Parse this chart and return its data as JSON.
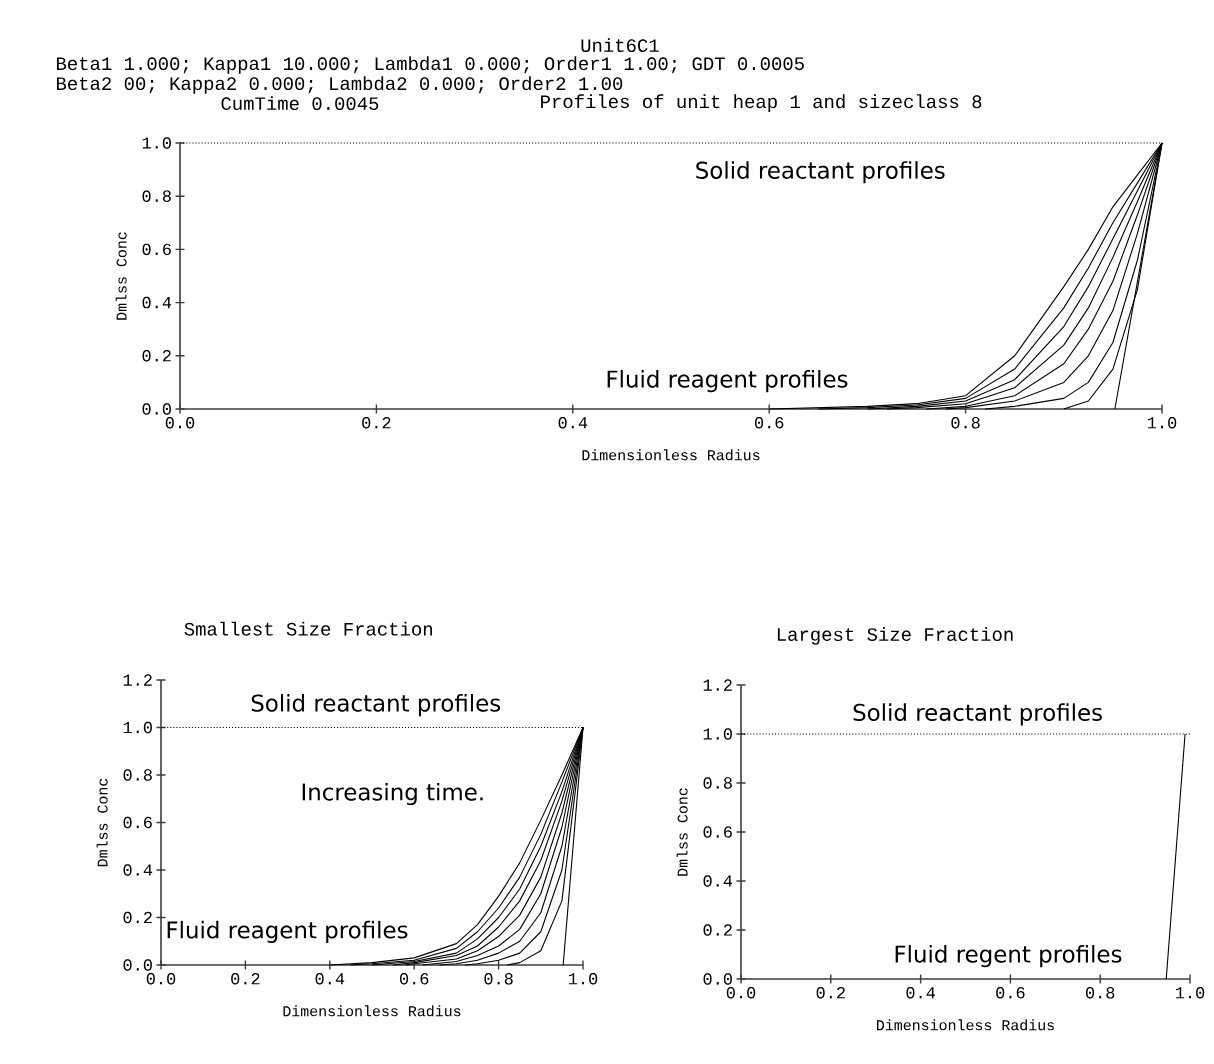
{
  "chart_data": [
    {
      "type": "line",
      "title": "Unit6C1",
      "xlabel": "Dimensionless Radius",
      "ylabel": "Dmlss Conc",
      "xlim": [
        0,
        1
      ],
      "ylim": [
        0,
        1
      ],
      "xticks": [
        {
          "value": 0,
          "label": "0.0"
        },
        {
          "value": 0.2,
          "label": "0.2"
        },
        {
          "value": 0.4,
          "label": "0.4"
        },
        {
          "value": 0.6,
          "label": "0.6"
        },
        {
          "value": 0.8,
          "label": "0.8"
        },
        {
          "value": 1,
          "label": "1.0"
        }
      ],
      "yticks": [
        {
          "value": 0,
          "label": "0.0"
        },
        {
          "value": 0.2,
          "label": "0.2"
        },
        {
          "value": 0.4,
          "label": "0.4"
        },
        {
          "value": 0.6,
          "label": "0.6"
        },
        {
          "value": 0.8,
          "label": "0.8"
        },
        {
          "value": 1,
          "label": "1.0"
        }
      ],
      "series": [
        {
          "color": "#000000",
          "line_style": "dotted",
          "x": [
            0,
            1
          ],
          "values": [
            1,
            1
          ]
        },
        {
          "color": "#000000",
          "x": [
            0.6,
            0.7,
            0.75,
            0.8,
            0.85,
            0.9,
            0.925,
            0.95,
            0.975,
            1.0
          ],
          "values": [
            0,
            0.01,
            0.02,
            0.05,
            0.2,
            0.46,
            0.6,
            0.76,
            0.88,
            1
          ]
        },
        {
          "color": "#000000",
          "x": [
            0.65,
            0.7,
            0.75,
            0.8,
            0.85,
            0.9,
            0.925,
            0.95,
            0.975,
            1.0
          ],
          "values": [
            0,
            0.005,
            0.015,
            0.04,
            0.15,
            0.38,
            0.53,
            0.7,
            0.85,
            1
          ]
        },
        {
          "color": "#000000",
          "x": [
            0.7,
            0.75,
            0.8,
            0.85,
            0.9,
            0.925,
            0.95,
            0.975,
            1.0
          ],
          "values": [
            0,
            0.01,
            0.03,
            0.11,
            0.31,
            0.46,
            0.64,
            0.82,
            1
          ]
        },
        {
          "color": "#000000",
          "x": [
            0.72,
            0.75,
            0.8,
            0.85,
            0.9,
            0.925,
            0.95,
            0.975,
            1.0
          ],
          "values": [
            0,
            0.005,
            0.02,
            0.08,
            0.24,
            0.38,
            0.57,
            0.78,
            1
          ]
        },
        {
          "color": "#000000",
          "x": [
            0.76,
            0.8,
            0.85,
            0.9,
            0.925,
            0.95,
            0.975,
            1.0
          ],
          "values": [
            0,
            0.01,
            0.05,
            0.17,
            0.3,
            0.48,
            0.73,
            1
          ]
        },
        {
          "color": "#000000",
          "x": [
            0.78,
            0.8,
            0.85,
            0.9,
            0.925,
            0.95,
            0.975,
            1.0
          ],
          "values": [
            0,
            0.005,
            0.03,
            0.1,
            0.2,
            0.37,
            0.66,
            1
          ]
        },
        {
          "color": "#000000",
          "x": [
            0.82,
            0.85,
            0.9,
            0.925,
            0.95,
            0.975,
            1.0
          ],
          "values": [
            0,
            0.01,
            0.04,
            0.1,
            0.25,
            0.56,
            1
          ]
        },
        {
          "color": "#000000",
          "x": [
            0.9,
            0.925,
            0.95,
            0.975,
            1.0
          ],
          "values": [
            0,
            0.03,
            0.15,
            0.45,
            1
          ]
        },
        {
          "color": "#000000",
          "x": [
            0.952,
            1.0
          ],
          "values": [
            0,
            1
          ]
        }
      ],
      "annotations": [
        "Beta1 1.000; Kappa1 10.000; Lambda1 0.000; Order1 1.00; GDT 0.0005",
        "Beta2 00; Kappa2 0.000; Lambda2 0.000; Order2 1.00",
        "CumTime 0.0045",
        "Profiles of unit heap 1 and sizeclass 8",
        "Solid reactant profiles",
        "Fluid reagent profiles"
      ]
    },
    {
      "type": "line",
      "title": "Smallest Size Fraction",
      "xlabel": "Dimensionless Radius",
      "ylabel": "Dmlss Conc",
      "xlim": [
        0,
        1
      ],
      "ylim": [
        0,
        1.2
      ],
      "xticks": [
        {
          "value": 0,
          "label": "0.0"
        },
        {
          "value": 0.2,
          "label": "0.2"
        },
        {
          "value": 0.4,
          "label": "0.4"
        },
        {
          "value": 0.6,
          "label": "0.6"
        },
        {
          "value": 0.8,
          "label": "0.8"
        },
        {
          "value": 1,
          "label": "1.0"
        }
      ],
      "yticks": [
        {
          "value": 0,
          "label": "0.0"
        },
        {
          "value": 0.2,
          "label": "0.2"
        },
        {
          "value": 0.4,
          "label": "0.4"
        },
        {
          "value": 0.6,
          "label": "0.6"
        },
        {
          "value": 0.8,
          "label": "0.8"
        },
        {
          "value": 1,
          "label": "1.0"
        },
        {
          "value": 1.2,
          "label": "1.2"
        }
      ],
      "series": [
        {
          "color": "#000000",
          "line_style": "dotted",
          "x": [
            0,
            1
          ],
          "values": [
            1,
            1
          ]
        },
        {
          "color": "#000000",
          "x": [
            0.4,
            0.5,
            0.6,
            0.7,
            0.75,
            0.8,
            0.85,
            0.9,
            0.95,
            1.0
          ],
          "values": [
            0,
            0.01,
            0.03,
            0.09,
            0.17,
            0.29,
            0.43,
            0.61,
            0.8,
            1
          ]
        },
        {
          "color": "#000000",
          "x": [
            0.45,
            0.5,
            0.6,
            0.7,
            0.75,
            0.8,
            0.85,
            0.9,
            0.95,
            1.0
          ],
          "values": [
            0,
            0.005,
            0.02,
            0.07,
            0.14,
            0.24,
            0.37,
            0.55,
            0.77,
            1
          ]
        },
        {
          "color": "#000000",
          "x": [
            0.5,
            0.6,
            0.7,
            0.75,
            0.8,
            0.85,
            0.9,
            0.95,
            1.0
          ],
          "values": [
            0,
            0.015,
            0.05,
            0.11,
            0.2,
            0.32,
            0.5,
            0.73,
            1
          ]
        },
        {
          "color": "#000000",
          "x": [
            0.55,
            0.6,
            0.7,
            0.75,
            0.8,
            0.85,
            0.9,
            0.95,
            1.0
          ],
          "values": [
            0,
            0.01,
            0.04,
            0.08,
            0.16,
            0.27,
            0.44,
            0.69,
            1
          ]
        },
        {
          "color": "#000000",
          "x": [
            0.58,
            0.6,
            0.7,
            0.75,
            0.8,
            0.85,
            0.9,
            0.95,
            1.0
          ],
          "values": [
            0,
            0.005,
            0.025,
            0.06,
            0.12,
            0.21,
            0.37,
            0.64,
            1
          ]
        },
        {
          "color": "#000000",
          "x": [
            0.62,
            0.7,
            0.75,
            0.8,
            0.85,
            0.9,
            0.95,
            1.0
          ],
          "values": [
            0,
            0.015,
            0.04,
            0.08,
            0.15,
            0.3,
            0.58,
            1
          ]
        },
        {
          "color": "#000000",
          "x": [
            0.66,
            0.7,
            0.75,
            0.8,
            0.85,
            0.9,
            0.95,
            1.0
          ],
          "values": [
            0,
            0.005,
            0.02,
            0.05,
            0.1,
            0.22,
            0.5,
            1
          ]
        },
        {
          "color": "#000000",
          "x": [
            0.72,
            0.75,
            0.8,
            0.85,
            0.9,
            0.95,
            1.0
          ],
          "values": [
            0,
            0.005,
            0.02,
            0.05,
            0.14,
            0.4,
            1
          ]
        },
        {
          "color": "#000000",
          "x": [
            0.82,
            0.85,
            0.9,
            0.95,
            1.0
          ],
          "values": [
            0,
            0.01,
            0.06,
            0.27,
            1
          ]
        },
        {
          "color": "#000000",
          "x": [
            0.953,
            1.0
          ],
          "values": [
            0,
            1
          ]
        }
      ],
      "annotations": [
        "Solid reactant profiles",
        "Increasing time.",
        "Fluid reagent profiles"
      ]
    },
    {
      "type": "line",
      "title": "Largest Size Fraction",
      "xlabel": "Dimensionless Radius",
      "ylabel": "Dmlss Conc",
      "xlim": [
        0,
        1
      ],
      "ylim": [
        0,
        1.2
      ],
      "xticks": [
        {
          "value": 0,
          "label": "0.0"
        },
        {
          "value": 0.2,
          "label": "0.2"
        },
        {
          "value": 0.4,
          "label": "0.4"
        },
        {
          "value": 0.6,
          "label": "0.6"
        },
        {
          "value": 0.8,
          "label": "0.8"
        },
        {
          "value": 1,
          "label": "1.0"
        }
      ],
      "yticks": [
        {
          "value": 0,
          "label": "0.0"
        },
        {
          "value": 0.2,
          "label": "0.2"
        },
        {
          "value": 0.4,
          "label": "0.4"
        },
        {
          "value": 0.6,
          "label": "0.6"
        },
        {
          "value": 0.8,
          "label": "0.8"
        },
        {
          "value": 1,
          "label": "1.0"
        },
        {
          "value": 1.2,
          "label": "1.2"
        }
      ],
      "series": [
        {
          "color": "#000000",
          "line_style": "dotted",
          "x": [
            0,
            1
          ],
          "values": [
            1,
            1
          ]
        },
        {
          "color": "#000000",
          "x": [
            0.947,
            0.989
          ],
          "values": [
            0,
            1
          ]
        }
      ],
      "annotations": [
        "Solid reactant profiles",
        "Fluid regent profiles"
      ]
    }
  ]
}
